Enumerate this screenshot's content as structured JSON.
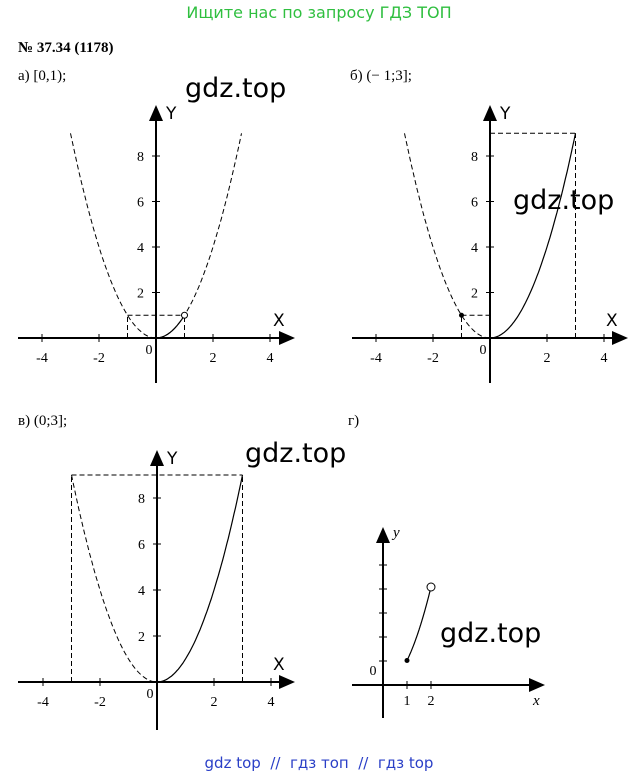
{
  "header": {
    "text": "Ищите нас по запросу ГДЗ ТОП"
  },
  "problem": {
    "number": "№ 37.34 (1178)"
  },
  "panels": [
    {
      "label": "а) [0,1);",
      "x_axis": "X",
      "y_axis": "Y",
      "x_ticks": [
        -4,
        -2,
        0,
        2,
        4
      ],
      "y_ticks": [
        2,
        4,
        6,
        8
      ],
      "watermark": "gdz.top"
    },
    {
      "label": "б) (− 1;3];",
      "x_axis": "X",
      "y_axis": "Y",
      "x_ticks": [
        -4,
        -2,
        0,
        2,
        4
      ],
      "y_ticks": [
        2,
        4,
        6,
        8
      ],
      "watermark": "gdz.top"
    },
    {
      "label": "в) (0;3];",
      "x_axis": "X",
      "y_axis": "Y",
      "x_ticks": [
        -4,
        -2,
        0,
        2,
        4
      ],
      "y_ticks": [
        2,
        4,
        6,
        8
      ],
      "watermark": "gdz.top"
    },
    {
      "label": "г)",
      "x_axis": "x",
      "y_axis": "y",
      "x_ticks": [
        0,
        1,
        2
      ],
      "y_ticks": [],
      "watermark": "gdz.top"
    }
  ],
  "footer": {
    "text": "gdz top  //  гдз топ  //  гдз top"
  }
}
